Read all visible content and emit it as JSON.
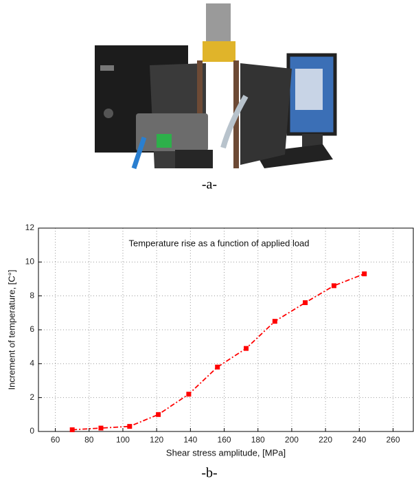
{
  "captions": {
    "a": "-a-",
    "b": "-b-"
  },
  "chart_data": {
    "type": "line",
    "annotation": "Temperature rise as a function of applied load",
    "x_label": "Shear stress amplitude, [MPa]",
    "y_label": "Increment of temperature, [C°]",
    "x": [
      70,
      87,
      104,
      121,
      139,
      156,
      173,
      190,
      208,
      225,
      243
    ],
    "series": [
      {
        "color": "#ff0000",
        "values": [
          0.1,
          0.2,
          0.3,
          1.0,
          2.2,
          3.8,
          4.9,
          6.5,
          7.6,
          8.6,
          9.3
        ]
      }
    ],
    "xlim": [
      50,
      272
    ],
    "xticks": [
      60,
      80,
      100,
      120,
      140,
      160,
      180,
      200,
      220,
      240,
      260
    ],
    "ylim": [
      0,
      12
    ],
    "yticks": [
      0,
      2,
      4,
      6,
      8,
      10,
      12
    ],
    "grid": true
  }
}
